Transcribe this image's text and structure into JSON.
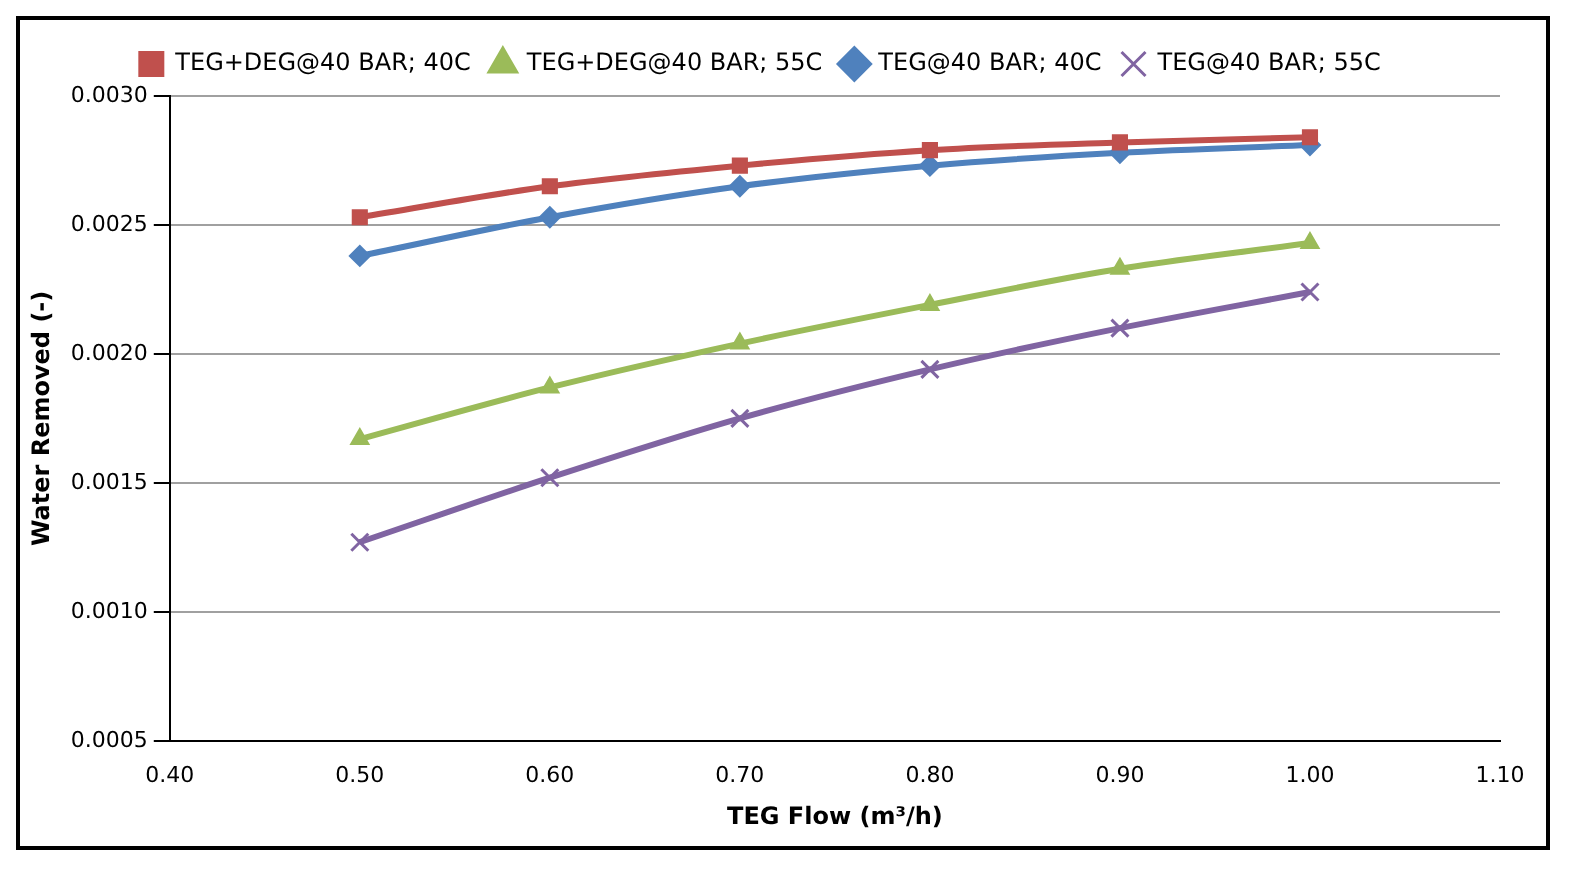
{
  "chart_data": {
    "type": "line",
    "xlabel": "TEG Flow (m³/h)",
    "ylabel": "Water Removed (-)",
    "x": [
      0.5,
      0.6,
      0.7,
      0.8,
      0.9,
      1.0
    ],
    "series": [
      {
        "name": "TEG+DEG@40 BAR; 40C",
        "color": "#c0504d",
        "marker": "square",
        "values": [
          0.00253,
          0.00265,
          0.00273,
          0.00279,
          0.00282,
          0.00284
        ]
      },
      {
        "name": "TEG+DEG@40 BAR; 55C",
        "color": "#9bbb59",
        "marker": "triangle",
        "values": [
          0.00167,
          0.00187,
          0.00204,
          0.00219,
          0.00233,
          0.00243
        ]
      },
      {
        "name": "TEG@40 BAR; 40C",
        "color": "#4f81bd",
        "marker": "diamond",
        "values": [
          0.00238,
          0.00253,
          0.00265,
          0.00273,
          0.00278,
          0.00281
        ]
      },
      {
        "name": "TEG@40 BAR; 55C",
        "color": "#8064a2",
        "marker": "cross",
        "values": [
          0.00127,
          0.00152,
          0.00175,
          0.00194,
          0.0021,
          0.00224
        ]
      }
    ],
    "xlim": [
      0.4,
      1.1
    ],
    "xticks": [
      {
        "value": 0.4,
        "label": "0.40"
      },
      {
        "value": 0.5,
        "label": "0.50"
      },
      {
        "value": 0.6,
        "label": "0.60"
      },
      {
        "value": 0.7,
        "label": "0.70"
      },
      {
        "value": 0.8,
        "label": "0.80"
      },
      {
        "value": 0.9,
        "label": "0.90"
      },
      {
        "value": 1.0,
        "label": "1.00"
      },
      {
        "value": 1.1,
        "label": "1.10"
      }
    ],
    "ylim": [
      0.0005,
      0.003
    ],
    "yticks": [
      {
        "value": 0.0005,
        "label": "0.0005"
      },
      {
        "value": 0.001,
        "label": "0.0010"
      },
      {
        "value": 0.0015,
        "label": "0.0015"
      },
      {
        "value": 0.002,
        "label": "0.0020"
      },
      {
        "value": 0.0025,
        "label": "0.0025"
      },
      {
        "value": 0.003,
        "label": "0.0030"
      }
    ],
    "grid": "y",
    "legend": "top",
    "line_style": "solid"
  }
}
